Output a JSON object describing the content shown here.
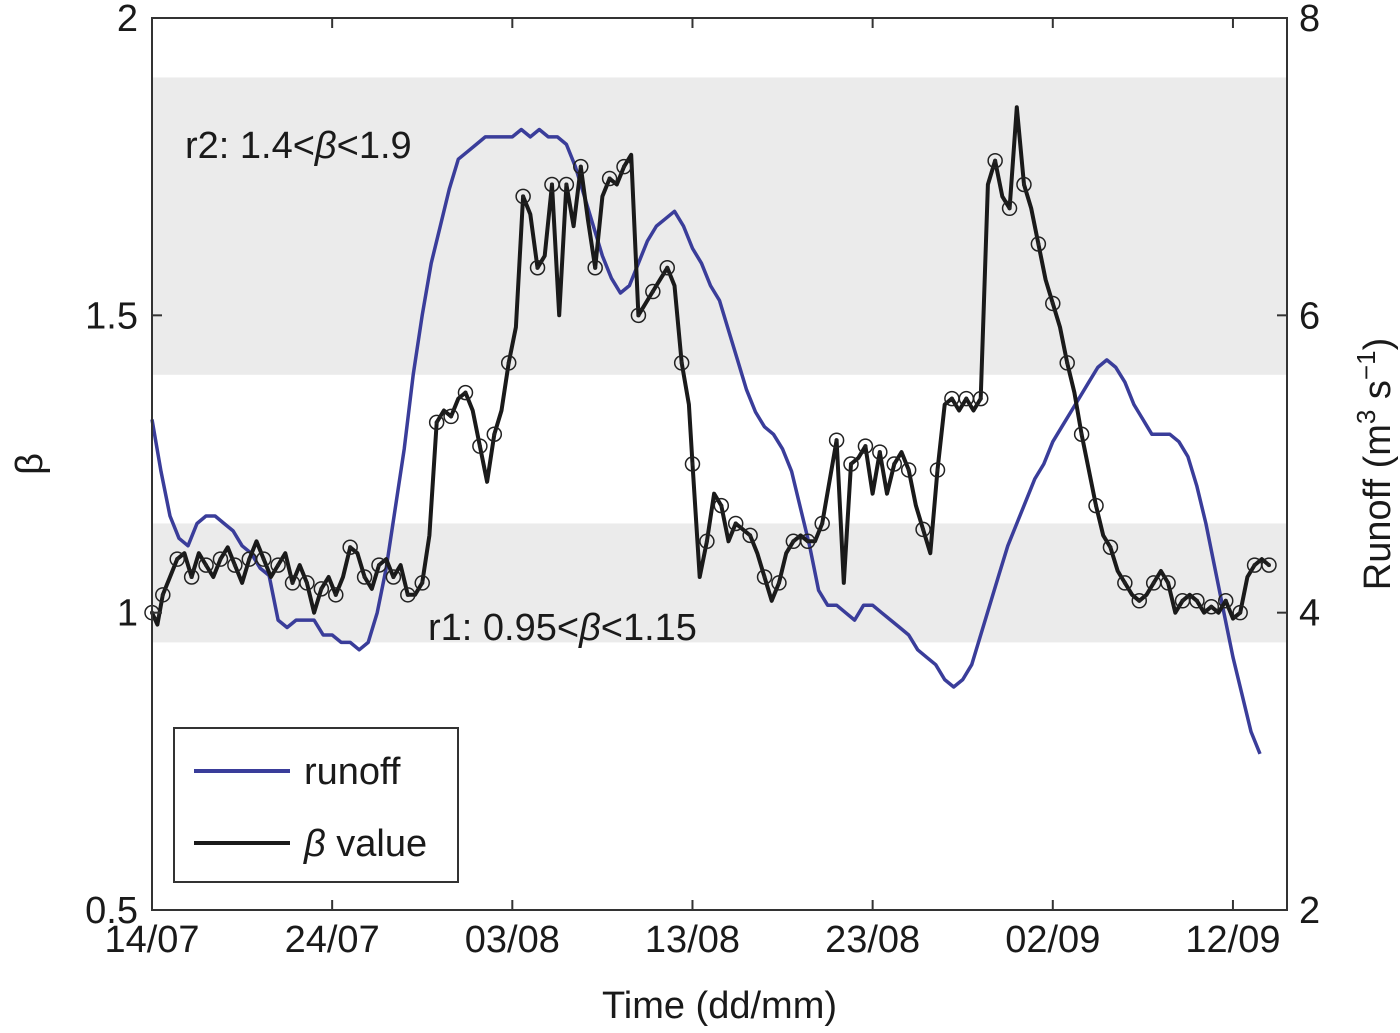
{
  "chart_data": {
    "type": "line",
    "xlabel": "Time (dd/mm)",
    "ylabel_left": "β",
    "ylabel_right_base": "Runoff (m",
    "ylabel_right_sup1": "3",
    "ylabel_right_mid": " s",
    "ylabel_right_sup2": "−1",
    "ylabel_right_close": ")",
    "x_ticks": [
      "14/07",
      "24/07",
      "03/08",
      "13/08",
      "23/08",
      "02/09",
      "12/09"
    ],
    "x_tick_days": [
      0,
      10,
      20,
      30,
      40,
      50,
      60
    ],
    "x_range_days": [
      0,
      63
    ],
    "y_left_ticks": [
      "0.5",
      "1",
      "1.5",
      "2"
    ],
    "y_left_range": [
      0.5,
      2.0
    ],
    "y_right_ticks": [
      "2",
      "4",
      "6",
      "8"
    ],
    "y_right_range": [
      2,
      8
    ],
    "bands": [
      {
        "label": "r2: 1.4<β<1.9",
        "label_prefix": "r2: 1.4<",
        "label_beta": "β",
        "label_suffix": "<1.9",
        "low": 1.4,
        "high": 1.9
      },
      {
        "label": "r1: 0.95<β<1.15",
        "label_prefix": "r1: 0.95<",
        "label_beta": "β",
        "label_suffix": "<1.15",
        "low": 0.95,
        "high": 1.15
      }
    ],
    "series": [
      {
        "name": "runoff",
        "axis": "right",
        "color": "#3a3d9a",
        "points": [
          [
            0.0,
            5.3
          ],
          [
            0.5,
            4.95
          ],
          [
            1.0,
            4.65
          ],
          [
            1.5,
            4.5
          ],
          [
            2.0,
            4.45
          ],
          [
            2.5,
            4.6
          ],
          [
            3.0,
            4.65
          ],
          [
            3.5,
            4.65
          ],
          [
            4.0,
            4.6
          ],
          [
            4.5,
            4.55
          ],
          [
            5.0,
            4.45
          ],
          [
            5.5,
            4.4
          ],
          [
            6.0,
            4.3
          ],
          [
            6.5,
            4.25
          ],
          [
            7.0,
            3.95
          ],
          [
            7.5,
            3.9
          ],
          [
            8.0,
            3.95
          ],
          [
            8.5,
            3.95
          ],
          [
            9.0,
            3.95
          ],
          [
            9.5,
            3.85
          ],
          [
            10.0,
            3.85
          ],
          [
            10.5,
            3.8
          ],
          [
            11.0,
            3.8
          ],
          [
            11.5,
            3.75
          ],
          [
            12.0,
            3.8
          ],
          [
            12.5,
            4.0
          ],
          [
            13.0,
            4.3
          ],
          [
            13.5,
            4.7
          ],
          [
            14.0,
            5.1
          ],
          [
            14.5,
            5.6
          ],
          [
            15.0,
            6.0
          ],
          [
            15.5,
            6.35
          ],
          [
            16.0,
            6.6
          ],
          [
            16.5,
            6.85
          ],
          [
            17.0,
            7.05
          ],
          [
            17.5,
            7.1
          ],
          [
            18.0,
            7.15
          ],
          [
            18.5,
            7.2
          ],
          [
            19.0,
            7.2
          ],
          [
            19.5,
            7.2
          ],
          [
            20.0,
            7.2
          ],
          [
            20.5,
            7.25
          ],
          [
            21.0,
            7.2
          ],
          [
            21.5,
            7.25
          ],
          [
            22.0,
            7.2
          ],
          [
            22.5,
            7.2
          ],
          [
            23.0,
            7.15
          ],
          [
            23.5,
            7.0
          ],
          [
            24.0,
            6.8
          ],
          [
            24.5,
            6.6
          ],
          [
            25.0,
            6.4
          ],
          [
            25.5,
            6.25
          ],
          [
            26.0,
            6.15
          ],
          [
            26.5,
            6.2
          ],
          [
            27.0,
            6.35
          ],
          [
            27.5,
            6.5
          ],
          [
            28.0,
            6.6
          ],
          [
            28.5,
            6.65
          ],
          [
            29.0,
            6.7
          ],
          [
            29.5,
            6.6
          ],
          [
            30.0,
            6.45
          ],
          [
            30.5,
            6.35
          ],
          [
            31.0,
            6.2
          ],
          [
            31.5,
            6.1
          ],
          [
            32.0,
            5.9
          ],
          [
            32.5,
            5.7
          ],
          [
            33.0,
            5.5
          ],
          [
            33.5,
            5.35
          ],
          [
            34.0,
            5.25
          ],
          [
            34.5,
            5.2
          ],
          [
            35.0,
            5.1
          ],
          [
            35.5,
            4.95
          ],
          [
            36.0,
            4.7
          ],
          [
            36.5,
            4.45
          ],
          [
            37.0,
            4.15
          ],
          [
            37.5,
            4.05
          ],
          [
            38.0,
            4.05
          ],
          [
            38.5,
            4.0
          ],
          [
            39.0,
            3.95
          ],
          [
            39.5,
            4.05
          ],
          [
            40.0,
            4.05
          ],
          [
            40.5,
            4.0
          ],
          [
            41.0,
            3.95
          ],
          [
            41.5,
            3.9
          ],
          [
            42.0,
            3.85
          ],
          [
            42.5,
            3.75
          ],
          [
            43.0,
            3.7
          ],
          [
            43.5,
            3.65
          ],
          [
            44.0,
            3.55
          ],
          [
            44.5,
            3.5
          ],
          [
            45.0,
            3.55
          ],
          [
            45.5,
            3.65
          ],
          [
            46.0,
            3.85
          ],
          [
            46.5,
            4.05
          ],
          [
            47.0,
            4.25
          ],
          [
            47.5,
            4.45
          ],
          [
            48.0,
            4.6
          ],
          [
            48.5,
            4.75
          ],
          [
            49.0,
            4.9
          ],
          [
            49.5,
            5.0
          ],
          [
            50.0,
            5.15
          ],
          [
            50.5,
            5.25
          ],
          [
            51.0,
            5.35
          ],
          [
            51.5,
            5.45
          ],
          [
            52.0,
            5.55
          ],
          [
            52.5,
            5.65
          ],
          [
            53.0,
            5.7
          ],
          [
            53.5,
            5.65
          ],
          [
            54.0,
            5.55
          ],
          [
            54.5,
            5.4
          ],
          [
            55.0,
            5.3
          ],
          [
            55.5,
            5.2
          ],
          [
            56.0,
            5.2
          ],
          [
            56.5,
            5.2
          ],
          [
            57.0,
            5.15
          ],
          [
            57.5,
            5.05
          ],
          [
            58.0,
            4.85
          ],
          [
            58.5,
            4.6
          ],
          [
            59.0,
            4.3
          ],
          [
            59.5,
            4.0
          ],
          [
            60.0,
            3.7
          ],
          [
            60.5,
            3.45
          ],
          [
            61.0,
            3.2
          ],
          [
            61.5,
            3.05
          ]
        ]
      },
      {
        "name": "β value",
        "name_beta": "β",
        "name_suffix": " value",
        "axis": "left",
        "color": "#1a1a1a",
        "points": [
          [
            0.0,
            1.0
          ],
          [
            0.3,
            0.98
          ],
          [
            0.6,
            1.03
          ],
          [
            1.0,
            1.06
          ],
          [
            1.4,
            1.09
          ],
          [
            1.8,
            1.1
          ],
          [
            2.2,
            1.06
          ],
          [
            2.6,
            1.1
          ],
          [
            3.0,
            1.08
          ],
          [
            3.4,
            1.06
          ],
          [
            3.8,
            1.09
          ],
          [
            4.2,
            1.11
          ],
          [
            4.6,
            1.08
          ],
          [
            5.0,
            1.05
          ],
          [
            5.4,
            1.09
          ],
          [
            5.8,
            1.12
          ],
          [
            6.2,
            1.09
          ],
          [
            6.6,
            1.06
          ],
          [
            7.0,
            1.08
          ],
          [
            7.4,
            1.1
          ],
          [
            7.8,
            1.05
          ],
          [
            8.2,
            1.08
          ],
          [
            8.6,
            1.05
          ],
          [
            9.0,
            1.0
          ],
          [
            9.4,
            1.04
          ],
          [
            9.8,
            1.06
          ],
          [
            10.2,
            1.03
          ],
          [
            10.6,
            1.06
          ],
          [
            11.0,
            1.11
          ],
          [
            11.4,
            1.1
          ],
          [
            11.8,
            1.06
          ],
          [
            12.2,
            1.04
          ],
          [
            12.6,
            1.08
          ],
          [
            13.0,
            1.09
          ],
          [
            13.4,
            1.06
          ],
          [
            13.8,
            1.08
          ],
          [
            14.2,
            1.03
          ],
          [
            14.6,
            1.03
          ],
          [
            15.0,
            1.05
          ],
          [
            15.4,
            1.13
          ],
          [
            15.8,
            1.32
          ],
          [
            16.2,
            1.34
          ],
          [
            16.6,
            1.33
          ],
          [
            17.0,
            1.36
          ],
          [
            17.4,
            1.37
          ],
          [
            17.8,
            1.34
          ],
          [
            18.2,
            1.28
          ],
          [
            18.6,
            1.22
          ],
          [
            19.0,
            1.3
          ],
          [
            19.4,
            1.34
          ],
          [
            19.8,
            1.42
          ],
          [
            20.2,
            1.48
          ],
          [
            20.6,
            1.7
          ],
          [
            21.0,
            1.67
          ],
          [
            21.4,
            1.58
          ],
          [
            21.8,
            1.6
          ],
          [
            22.2,
            1.72
          ],
          [
            22.6,
            1.5
          ],
          [
            23.0,
            1.72
          ],
          [
            23.4,
            1.65
          ],
          [
            23.8,
            1.75
          ],
          [
            24.2,
            1.66
          ],
          [
            24.6,
            1.58
          ],
          [
            25.0,
            1.7
          ],
          [
            25.4,
            1.73
          ],
          [
            25.8,
            1.72
          ],
          [
            26.2,
            1.75
          ],
          [
            26.6,
            1.77
          ],
          [
            27.0,
            1.5
          ],
          [
            27.4,
            1.52
          ],
          [
            27.8,
            1.54
          ],
          [
            28.2,
            1.56
          ],
          [
            28.6,
            1.58
          ],
          [
            29.0,
            1.55
          ],
          [
            29.4,
            1.42
          ],
          [
            29.8,
            1.35
          ],
          [
            30.0,
            1.25
          ],
          [
            30.4,
            1.06
          ],
          [
            30.8,
            1.12
          ],
          [
            31.2,
            1.2
          ],
          [
            31.6,
            1.18
          ],
          [
            32.0,
            1.12
          ],
          [
            32.4,
            1.15
          ],
          [
            32.8,
            1.14
          ],
          [
            33.2,
            1.13
          ],
          [
            33.6,
            1.1
          ],
          [
            34.0,
            1.06
          ],
          [
            34.4,
            1.02
          ],
          [
            34.8,
            1.05
          ],
          [
            35.2,
            1.1
          ],
          [
            35.6,
            1.12
          ],
          [
            36.0,
            1.13
          ],
          [
            36.4,
            1.12
          ],
          [
            36.8,
            1.12
          ],
          [
            37.2,
            1.15
          ],
          [
            37.6,
            1.22
          ],
          [
            38.0,
            1.29
          ],
          [
            38.4,
            1.05
          ],
          [
            38.8,
            1.25
          ],
          [
            39.2,
            1.26
          ],
          [
            39.6,
            1.28
          ],
          [
            40.0,
            1.2
          ],
          [
            40.4,
            1.27
          ],
          [
            40.8,
            1.2
          ],
          [
            41.2,
            1.25
          ],
          [
            41.6,
            1.27
          ],
          [
            42.0,
            1.24
          ],
          [
            42.4,
            1.18
          ],
          [
            42.8,
            1.14
          ],
          [
            43.2,
            1.1
          ],
          [
            43.6,
            1.24
          ],
          [
            44.0,
            1.35
          ],
          [
            44.4,
            1.36
          ],
          [
            44.8,
            1.34
          ],
          [
            45.2,
            1.36
          ],
          [
            45.6,
            1.34
          ],
          [
            46.0,
            1.36
          ],
          [
            46.4,
            1.72
          ],
          [
            46.8,
            1.76
          ],
          [
            47.2,
            1.7
          ],
          [
            47.6,
            1.68
          ],
          [
            48.0,
            1.85
          ],
          [
            48.4,
            1.72
          ],
          [
            48.8,
            1.68
          ],
          [
            49.2,
            1.62
          ],
          [
            49.6,
            1.56
          ],
          [
            50.0,
            1.52
          ],
          [
            50.4,
            1.48
          ],
          [
            50.8,
            1.42
          ],
          [
            51.2,
            1.37
          ],
          [
            51.6,
            1.3
          ],
          [
            52.0,
            1.24
          ],
          [
            52.4,
            1.18
          ],
          [
            52.8,
            1.13
          ],
          [
            53.2,
            1.11
          ],
          [
            53.6,
            1.07
          ],
          [
            54.0,
            1.05
          ],
          [
            54.4,
            1.03
          ],
          [
            54.8,
            1.02
          ],
          [
            55.2,
            1.03
          ],
          [
            55.6,
            1.05
          ],
          [
            56.0,
            1.07
          ],
          [
            56.4,
            1.05
          ],
          [
            56.8,
            1.0
          ],
          [
            57.2,
            1.02
          ],
          [
            57.6,
            1.03
          ],
          [
            58.0,
            1.02
          ],
          [
            58.4,
            1.0
          ],
          [
            58.8,
            1.01
          ],
          [
            59.2,
            1.0
          ],
          [
            59.6,
            1.02
          ],
          [
            60.0,
            0.99
          ],
          [
            60.4,
            1.0
          ],
          [
            60.8,
            1.06
          ],
          [
            61.2,
            1.08
          ],
          [
            61.6,
            1.09
          ],
          [
            62.0,
            1.08
          ]
        ]
      }
    ],
    "legend": {
      "placement": "lower-left",
      "entries": [
        "runoff",
        "β value"
      ]
    },
    "grid": false
  }
}
